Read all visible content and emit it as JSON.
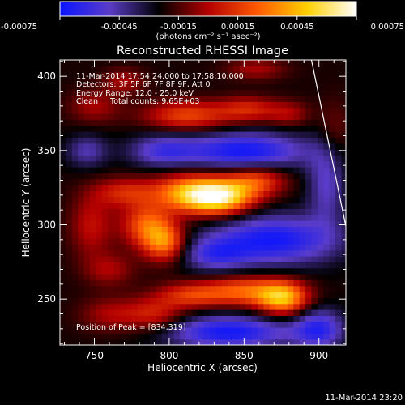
{
  "colorbar": {
    "ticks": [
      "-0.00075",
      "-0.00045",
      "-0.00015",
      "0.00015",
      "0.00045",
      "0.00075"
    ],
    "tick_values": [
      -0.00075,
      -0.00045,
      -0.00015,
      0.00015,
      0.00045,
      0.00075
    ],
    "unit_label": "(photons cm⁻² s⁻¹ asec⁻²)",
    "range": [
      -0.00075,
      0.00075
    ],
    "colormap": "RHESSI blue-black-red-yellow-white",
    "colormap_stops": [
      "#0a14ff",
      "#5a3cc8",
      "#000000",
      "#b40000",
      "#ff5a00",
      "#ffd000",
      "#ffffff"
    ]
  },
  "chart_data": {
    "type": "heatmap",
    "title": "Reconstructed RHESSI Image",
    "xlabel": "Heliocentric X (arcsec)",
    "ylabel": "Heliocentric Y (arcsec)",
    "xlim": [
      727,
      918
    ],
    "ylim": [
      219,
      411
    ],
    "xticks": [
      750,
      800,
      850,
      900
    ],
    "yticks": [
      250,
      300,
      350,
      400
    ],
    "info_lines": [
      "11-Mar-2014 17:54:24.000 to 17:58:10.000",
      "Detectors: 3F 5F 6F 7F 8F 9F, Att 0",
      "Energy Range: 12.0 - 25.0 keV",
      "Clean     Total counts: 9.65E+03"
    ],
    "peak_label": "Position of Peak = [834,319]",
    "peak": [
      834,
      319
    ],
    "limb_line": [
      [
        895,
        411
      ],
      [
        918,
        299
      ]
    ],
    "sources": [
      {
        "x": 834,
        "y": 319,
        "intensity": 0.00075,
        "sx": 16,
        "sy": 8
      },
      {
        "x": 813,
        "y": 322,
        "intensity": 0.00055,
        "sx": 18,
        "sy": 9
      },
      {
        "x": 858,
        "y": 330,
        "intensity": 0.0004,
        "sx": 14,
        "sy": 7
      },
      {
        "x": 785,
        "y": 300,
        "intensity": 0.00045,
        "sx": 12,
        "sy": 10
      },
      {
        "x": 797,
        "y": 288,
        "intensity": 0.0005,
        "sx": 10,
        "sy": 9
      },
      {
        "x": 770,
        "y": 322,
        "intensity": 0.0003,
        "sx": 14,
        "sy": 7
      },
      {
        "x": 748,
        "y": 300,
        "intensity": 0.00025,
        "sx": 10,
        "sy": 15
      },
      {
        "x": 760,
        "y": 270,
        "intensity": 0.0002,
        "sx": 12,
        "sy": 8
      },
      {
        "x": 876,
        "y": 251,
        "intensity": 0.00065,
        "sx": 12,
        "sy": 8
      },
      {
        "x": 850,
        "y": 256,
        "intensity": 0.00045,
        "sx": 18,
        "sy": 7
      },
      {
        "x": 815,
        "y": 253,
        "intensity": 0.00035,
        "sx": 16,
        "sy": 6
      },
      {
        "x": 790,
        "y": 240,
        "intensity": 0.0003,
        "sx": 14,
        "sy": 8
      },
      {
        "x": 760,
        "y": 240,
        "intensity": 0.0002,
        "sx": 14,
        "sy": 8
      },
      {
        "x": 812,
        "y": 374,
        "intensity": 0.0004,
        "sx": 20,
        "sy": 7
      },
      {
        "x": 853,
        "y": 378,
        "intensity": 0.0003,
        "sx": 14,
        "sy": 6
      },
      {
        "x": 880,
        "y": 375,
        "intensity": 0.0002,
        "sx": 10,
        "sy": 6
      },
      {
        "x": 750,
        "y": 380,
        "intensity": 0.0002,
        "sx": 12,
        "sy": 8
      },
      {
        "x": 770,
        "y": 397,
        "intensity": 0.0002,
        "sx": 10,
        "sy": 6
      },
      {
        "x": 858,
        "y": 405,
        "intensity": 0.0002,
        "sx": 14,
        "sy": 5
      },
      {
        "x": 910,
        "y": 360,
        "intensity": 0.00015,
        "sx": 8,
        "sy": 16
      },
      {
        "x": 870,
        "y": 290,
        "intensity": -0.0005,
        "sx": 30,
        "sy": 12
      },
      {
        "x": 830,
        "y": 280,
        "intensity": -0.0003,
        "sx": 16,
        "sy": 8
      },
      {
        "x": 850,
        "y": 350,
        "intensity": -0.0005,
        "sx": 30,
        "sy": 9
      },
      {
        "x": 795,
        "y": 350,
        "intensity": -0.0003,
        "sx": 16,
        "sy": 8
      },
      {
        "x": 840,
        "y": 228,
        "intensity": -0.0005,
        "sx": 30,
        "sy": 8
      },
      {
        "x": 900,
        "y": 230,
        "intensity": -0.0004,
        "sx": 12,
        "sy": 10
      },
      {
        "x": 905,
        "y": 330,
        "intensity": -0.0003,
        "sx": 9,
        "sy": 20
      },
      {
        "x": 745,
        "y": 350,
        "intensity": -0.00025,
        "sx": 10,
        "sy": 8
      }
    ],
    "background_level": -0.00022
  },
  "footer": {
    "timestamp": "11-Mar-2014 23:20"
  }
}
